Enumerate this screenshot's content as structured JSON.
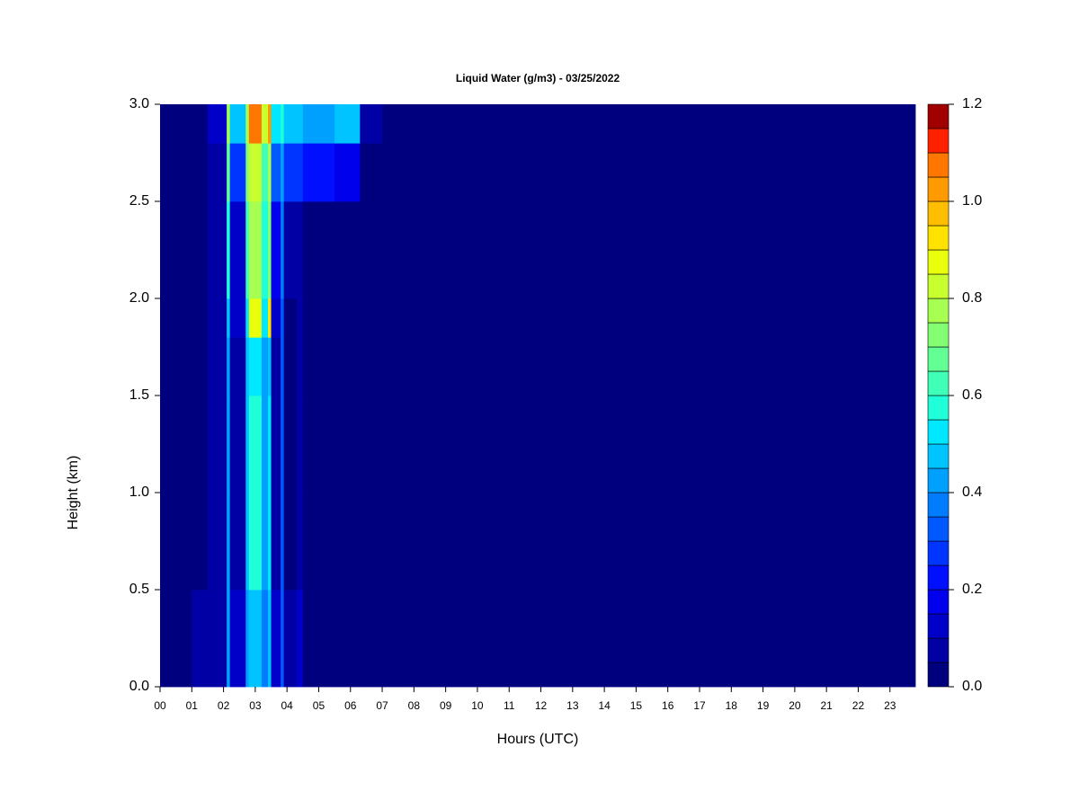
{
  "chart_data": {
    "type": "heatmap",
    "title": "Liquid Water (g/m3) - 03/25/2022",
    "x_label": "Hours (UTC)",
    "y_label": "Height (km)",
    "xlim": [
      0,
      23.8
    ],
    "ylim": [
      0,
      3
    ],
    "xticks": [
      {
        "value": 0,
        "label": "00"
      },
      {
        "value": 1,
        "label": "01"
      },
      {
        "value": 2,
        "label": "02"
      },
      {
        "value": 3,
        "label": "03"
      },
      {
        "value": 4,
        "label": "04"
      },
      {
        "value": 5,
        "label": "05"
      },
      {
        "value": 6,
        "label": "06"
      },
      {
        "value": 7,
        "label": "07"
      },
      {
        "value": 8,
        "label": "08"
      },
      {
        "value": 9,
        "label": "09"
      },
      {
        "value": 10,
        "label": "10"
      },
      {
        "value": 11,
        "label": "11"
      },
      {
        "value": 12,
        "label": "12"
      },
      {
        "value": 13,
        "label": "13"
      },
      {
        "value": 14,
        "label": "14"
      },
      {
        "value": 15,
        "label": "15"
      },
      {
        "value": 16,
        "label": "16"
      },
      {
        "value": 17,
        "label": "17"
      },
      {
        "value": 18,
        "label": "18"
      },
      {
        "value": 19,
        "label": "19"
      },
      {
        "value": 20,
        "label": "20"
      },
      {
        "value": 21,
        "label": "21"
      },
      {
        "value": 22,
        "label": "22"
      },
      {
        "value": 23,
        "label": "23"
      }
    ],
    "yticks": [
      {
        "value": 0,
        "label": "0.0"
      },
      0.5,
      {
        "value": 1,
        "label": "1.0"
      },
      1.5,
      {
        "value": 2,
        "label": "2.0"
      },
      2.5,
      {
        "value": 3,
        "label": "3.0"
      }
    ],
    "x_edges": [
      0,
      1,
      1.5,
      2.1,
      2.2,
      2.7,
      2.8,
      3.2,
      3.4,
      3.5,
      3.8,
      3.9,
      4.3,
      4.5,
      5.5,
      6.3,
      7,
      23.8
    ],
    "y_edges": [
      0,
      0.5,
      1.0,
      1.5,
      1.8,
      2.0,
      2.5,
      2.8,
      3.0
    ],
    "values": [
      [
        0.02,
        0.05,
        0.08,
        0.4,
        0.1,
        0.4,
        0.45,
        0.35,
        0.45,
        0.1,
        0.3,
        0.05,
        0.1,
        0.02,
        0,
        0,
        0
      ],
      [
        0,
        0.03,
        0.06,
        0.4,
        0.08,
        0.45,
        0.55,
        0.4,
        0.5,
        0.08,
        0.3,
        0.03,
        0.08,
        0,
        0,
        0,
        0
      ],
      [
        0,
        0.02,
        0.05,
        0.4,
        0.08,
        0.45,
        0.55,
        0.4,
        0.5,
        0.08,
        0.3,
        0.03,
        0.05,
        0,
        0,
        0,
        0
      ],
      [
        0,
        0.02,
        0.05,
        0.4,
        0.08,
        0.45,
        0.5,
        0.4,
        0.45,
        0.08,
        0.3,
        0.03,
        0.05,
        0,
        0,
        0,
        0
      ],
      [
        0,
        0.02,
        0.06,
        0.45,
        0.1,
        0.5,
        0.85,
        0.5,
        0.9,
        0.1,
        0.3,
        0.03,
        0.05,
        0,
        0,
        0,
        0
      ],
      [
        0,
        0.02,
        0.06,
        0.55,
        0.12,
        0.6,
        0.75,
        0.55,
        0.7,
        0.15,
        0.35,
        0.08,
        0.08,
        0.03,
        0,
        0,
        0
      ],
      [
        0,
        0.03,
        0.08,
        0.65,
        0.25,
        0.7,
        0.8,
        0.6,
        0.75,
        0.3,
        0.4,
        0.25,
        0.25,
        0.2,
        0.15,
        0,
        0
      ],
      [
        0,
        0.03,
        0.1,
        0.75,
        0.45,
        0.75,
        1.05,
        0.8,
        1.0,
        0.5,
        0.55,
        0.45,
        0.45,
        0.4,
        0.45,
        0.08,
        0
      ]
    ],
    "colorbar": {
      "lim": [
        0,
        1.2
      ],
      "levels": [
        0,
        0.05,
        0.1,
        0.15,
        0.2,
        0.25,
        0.3,
        0.35,
        0.4,
        0.45,
        0.5,
        0.55,
        0.6,
        0.65,
        0.7,
        0.75,
        0.8,
        0.85,
        0.9,
        0.95,
        1.0,
        1.05,
        1.1,
        1.15,
        1.2
      ],
      "colors": [
        "#00007f",
        "#0000a4",
        "#0000c8",
        "#0000ed",
        "#0010ff",
        "#0034ff",
        "#0058ff",
        "#007cff",
        "#00a0ff",
        "#00c4ff",
        "#00e8ff",
        "#1fffd8",
        "#40ffb7",
        "#62ff95",
        "#84ff73",
        "#a6ff51",
        "#c8ff2f",
        "#eaff0d",
        "#ffe200",
        "#ffbe00",
        "#ff9a00",
        "#ff7600",
        "#ff2000",
        "#a00000"
      ],
      "ticks": [
        {
          "value": 0,
          "label": "0.0"
        },
        0.2,
        0.4,
        0.6,
        0.8,
        {
          "value": 1,
          "label": "1.0"
        },
        1.2
      ]
    }
  }
}
